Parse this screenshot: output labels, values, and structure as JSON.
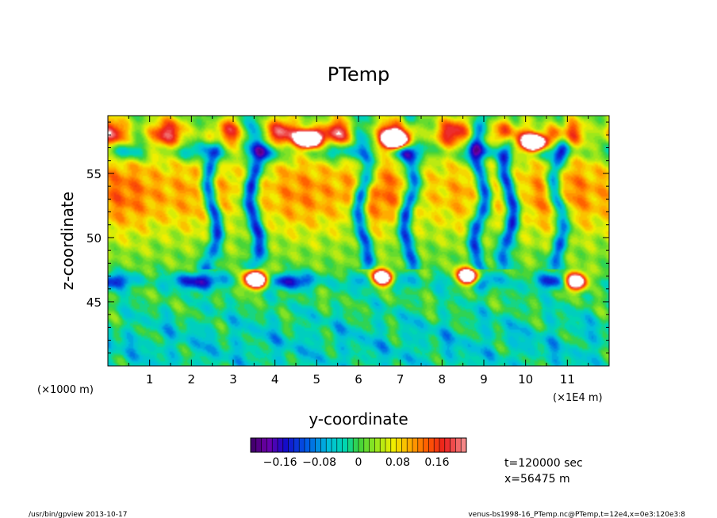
{
  "chart_data": {
    "type": "heatmap",
    "title": "PTemp",
    "xlabel": "y-coordinate",
    "ylabel": "z-coordinate",
    "x_unit_left": "(×1000 m)",
    "x_unit_right": "(×1E4 m)",
    "xlim": [
      0,
      12
    ],
    "ylim": [
      40,
      59.5
    ],
    "x_ticks": [
      1,
      2,
      3,
      4,
      5,
      6,
      7,
      8,
      9,
      10,
      11
    ],
    "x_tick_labels": [
      "1",
      "2",
      "3",
      "4",
      "5",
      "6",
      "7",
      "8",
      "9",
      "10",
      "11"
    ],
    "y_ticks": [
      45,
      50,
      55
    ],
    "y_tick_labels": [
      "45",
      "50",
      "55"
    ],
    "colorbar": {
      "range": [
        -0.22,
        0.22
      ],
      "levels": 40,
      "tick_values": [
        -0.16,
        -0.08,
        0,
        0.08,
        0.16
      ],
      "tick_labels": [
        "−0.16",
        "−0.08",
        "0",
        "0.08",
        "0.16"
      ]
    },
    "annotations": [
      "t=120000 sec",
      "x=56475 m"
    ],
    "footer_left": "/usr/bin/gpview   2013-10-17",
    "footer_right": "venus-bs1998-16_PTemp.nc@PTemp,t=12e4,x=0e3:120e3:8",
    "field_features": {
      "cold_columns_y": [
        2.5,
        3.5,
        6.1,
        7.2,
        8.9,
        9.6,
        10.8
      ],
      "warm_layer_z": [
        50,
        56
      ],
      "cold_band_z": 46.6,
      "saturated_blobs": [
        {
          "y": 3.55,
          "z": 46.7
        },
        {
          "y": 6.55,
          "z": 46.8
        },
        {
          "y": 8.6,
          "z": 46.9
        },
        {
          "y": 11.2,
          "z": 46.6
        },
        {
          "y": 4.8,
          "z": 57.7
        },
        {
          "y": 6.9,
          "z": 57.6
        },
        {
          "y": 10.2,
          "z": 57.4
        }
      ]
    }
  }
}
